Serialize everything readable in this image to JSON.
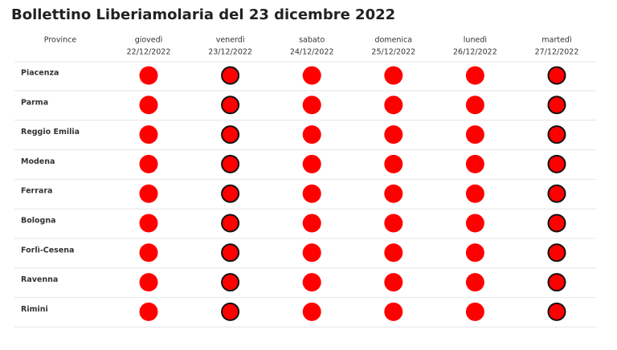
{
  "header": {
    "title": "Bollettino Liberiamolaria del 23 dicembre 2022"
  },
  "table": {
    "province_header": "Province",
    "days": [
      {
        "day": "giovedì",
        "date": "22/12/2022"
      },
      {
        "day": "venerdì",
        "date": "23/12/2022"
      },
      {
        "day": "sabato",
        "date": "24/12/2022"
      },
      {
        "day": "domenica",
        "date": "25/12/2022"
      },
      {
        "day": "lunedì",
        "date": "26/12/2022"
      },
      {
        "day": "martedì",
        "date": "27/12/2022"
      }
    ],
    "rows": [
      "Piacenza",
      "Parma",
      "Reggio Emilia",
      "Modena",
      "Ferrara",
      "Bologna",
      "Forlì-Cesena",
      "Ravenna",
      "Rimini"
    ]
  }
}
